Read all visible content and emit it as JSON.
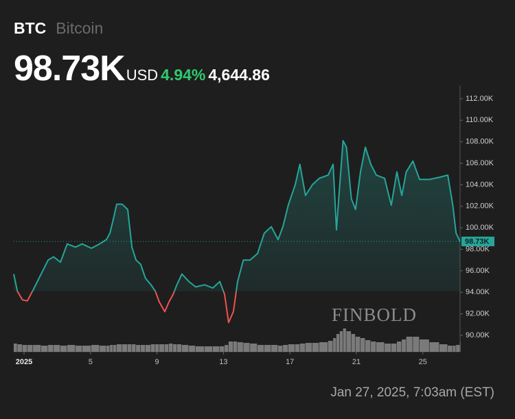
{
  "header": {
    "symbol": "BTC",
    "name": "Bitcoin",
    "price": {
      "value": 98730,
      "label": "98.73K"
    },
    "currency": "USD",
    "change_percent": {
      "value": 4.94,
      "label": "4.94%"
    },
    "change": {
      "value": 4644.86,
      "label": "4,644.86"
    }
  },
  "footer": "Jan 27, 2025, 7:03am (EST)",
  "chart_data": {
    "type": "line",
    "watermark": "FINBOLD",
    "color": "#26a69a",
    "down_color": "#ef5350",
    "volume_color": "#9a9a9a",
    "x": [
      0.38,
      0.6,
      0.9,
      1.2,
      1.54,
      2.03,
      2.45,
      2.78,
      3.19,
      3.6,
      4.1,
      4.5,
      5.05,
      5.55,
      5.96,
      6.17,
      6.37,
      6.58,
      6.9,
      7.24,
      7.49,
      7.74,
      8.02,
      8.31,
      8.64,
      8.9,
      9.14,
      9.47,
      9.72,
      9.97,
      10.2,
      10.5,
      10.92,
      11.33,
      11.87,
      12.36,
      12.78,
      13.07,
      13.31,
      13.6,
      13.85,
      14.2,
      14.6,
      15.05,
      15.46,
      15.88,
      16.29,
      16.58,
      16.9,
      17.32,
      17.6,
      17.94,
      18.35,
      18.77,
      19.3,
      19.6,
      19.8,
      20.0,
      20.2,
      20.4,
      20.7,
      20.95,
      21.25,
      21.54,
      21.87,
      22.2,
      22.7,
      23.1,
      23.44,
      23.73,
      24.0,
      24.4,
      24.8,
      25.4,
      26.0,
      26.5,
      26.8,
      27.0,
      27.24
    ],
    "values": [
      95700,
      94100,
      93300,
      93200,
      94200,
      95700,
      97000,
      97300,
      96800,
      98500,
      98200,
      98500,
      98100,
      98500,
      98900,
      99500,
      100800,
      102200,
      102200,
      101700,
      98200,
      97000,
      96600,
      95300,
      94700,
      94100,
      93100,
      92200,
      93100,
      93800,
      94700,
      95700,
      95000,
      94500,
      94700,
      94400,
      95000,
      93800,
      91200,
      92200,
      95000,
      97000,
      97000,
      97600,
      99500,
      100100,
      98900,
      100100,
      102100,
      104000,
      105900,
      103000,
      104000,
      104600,
      104900,
      105900,
      99800,
      104000,
      108100,
      107500,
      102700,
      101700,
      105200,
      107500,
      105900,
      104900,
      104600,
      102100,
      105200,
      103000,
      105200,
      106200,
      104500,
      104500,
      104700,
      104900,
      102100,
      99500,
      98730
    ],
    "volume": [
      12,
      11,
      10,
      10,
      10,
      9,
      10,
      10,
      9,
      10,
      9,
      9,
      10,
      9,
      9,
      10,
      10,
      11,
      11,
      11,
      11,
      10,
      10,
      10,
      11,
      11,
      11,
      11,
      12,
      11,
      11,
      10,
      9,
      8,
      8,
      8,
      8,
      10,
      15,
      15,
      14,
      13,
      12,
      10,
      10,
      10,
      9,
      10,
      11,
      11,
      12,
      13,
      13,
      14,
      16,
      20,
      26,
      30,
      34,
      30,
      26,
      22,
      20,
      17,
      15,
      14,
      12,
      12,
      15,
      18,
      22,
      22,
      18,
      14,
      11,
      9,
      9,
      10,
      14
    ],
    "vlim": [
      0,
      40
    ],
    "xlim": [
      0.38,
      27.24
    ],
    "xticks": [
      {
        "value": 1,
        "label": "2025"
      },
      5,
      9,
      13,
      17,
      21,
      25
    ],
    "ylim": [
      88470,
      113210
    ],
    "yticks": [
      {
        "value": 90000,
        "label": "90.00K"
      },
      {
        "value": 92000,
        "label": "92.00K"
      },
      {
        "value": 94000,
        "label": "94.00K"
      },
      {
        "value": 96000,
        "label": "96.00K"
      },
      {
        "value": 98000,
        "label": "98.00K"
      },
      {
        "value": 100000,
        "label": "100.00K"
      },
      {
        "value": 102000,
        "label": "102.00K"
      },
      {
        "value": 104000,
        "label": "104.00K"
      },
      {
        "value": 106000,
        "label": "106.00K"
      },
      {
        "value": 108000,
        "label": "108.00K"
      },
      {
        "value": 110000,
        "label": "110.00K"
      },
      {
        "value": 112000,
        "label": "112.00K"
      }
    ]
  }
}
